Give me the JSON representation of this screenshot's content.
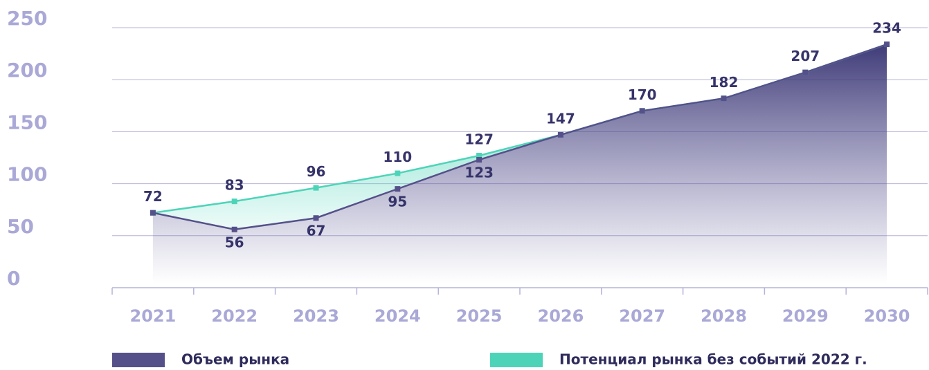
{
  "chart_data": {
    "type": "line",
    "categories": [
      "2021",
      "2022",
      "2023",
      "2024",
      "2025",
      "2026",
      "2027",
      "2028",
      "2029",
      "2030"
    ],
    "series": [
      {
        "name": "Объем рынка",
        "color": "#55508a",
        "values": [
          72,
          56,
          67,
          95,
          123,
          147,
          170,
          182,
          207,
          234
        ]
      },
      {
        "name": "Потенциал рынка без событий 2022 г.",
        "color": "#4dd4b8",
        "values": [
          72,
          83,
          96,
          110,
          127,
          147,
          170,
          182,
          207,
          234
        ]
      }
    ],
    "ylim": [
      0,
      250
    ],
    "yticks": [
      0,
      50,
      100,
      150,
      200,
      250
    ],
    "grid": true
  }
}
